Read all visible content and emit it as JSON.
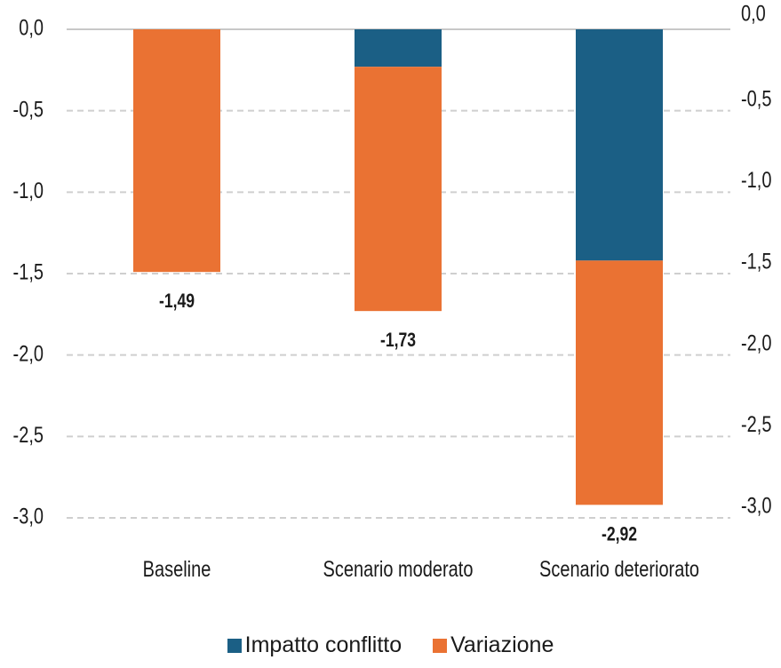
{
  "chart_data": {
    "type": "bar",
    "stacked": true,
    "categories": [
      "Baseline",
      "Scenario moderato",
      "Scenario deteriorato"
    ],
    "series": [
      {
        "name": "Impatto conflitto",
        "color": "#1b5f85",
        "values": [
          0,
          -0.23,
          -1.42
        ]
      },
      {
        "name": "Variazione",
        "color": "#ea7233",
        "values": [
          -1.49,
          -1.5,
          -1.5
        ]
      }
    ],
    "totals": [
      -1.49,
      -1.73,
      -2.92
    ],
    "total_labels": [
      "-1,49",
      "-1,73",
      "-2,92"
    ],
    "ylim": [
      -3.0,
      0.0
    ],
    "yticks": [
      0.0,
      -0.5,
      -1.0,
      -1.5,
      -2.0,
      -2.5,
      -3.0
    ],
    "ytick_labels": [
      "0,0",
      "-0,5",
      "-1,0",
      "-1,5",
      "-2,0",
      "-2,5",
      "-3,0"
    ],
    "secondary_ytick_labels": [
      "0,0",
      "-0,5",
      "-1,0",
      "-1,5",
      "-2,0",
      "-2,5",
      "-3,0"
    ],
    "grid": true,
    "legend_position": "bottom",
    "title": "",
    "xlabel": "",
    "ylabel": ""
  },
  "legend": {
    "items": [
      {
        "label": "Impatto conflitto",
        "color": "#1b5f85"
      },
      {
        "label": "Variazione",
        "color": "#ea7233"
      }
    ]
  }
}
